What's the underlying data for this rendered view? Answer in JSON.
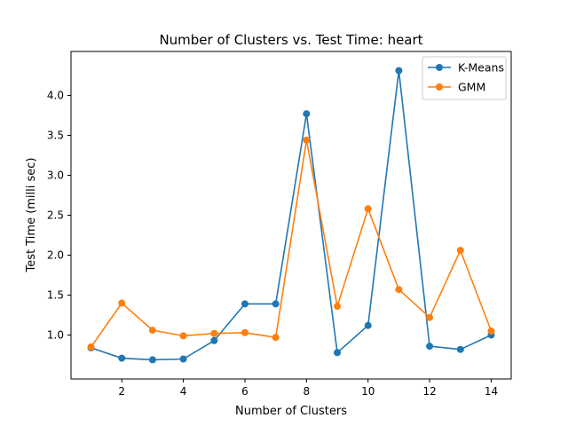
{
  "chart_data": {
    "type": "line",
    "title": "Number of Clusters vs. Test Time: heart",
    "xlabel": "Number of Clusters",
    "ylabel": "Test Time (milli sec)",
    "x": [
      1,
      2,
      3,
      4,
      5,
      6,
      7,
      8,
      9,
      10,
      11,
      12,
      13,
      14
    ],
    "xlim": [
      0.35,
      14.65
    ],
    "ylim": [
      0.45,
      4.55
    ],
    "xticks": [
      2,
      4,
      6,
      8,
      10,
      12,
      14
    ],
    "yticks": [
      1.0,
      1.5,
      2.0,
      2.5,
      3.0,
      3.5,
      4.0
    ],
    "yticks_labels": [
      "1.0",
      "1.5",
      "2.0",
      "2.5",
      "3.0",
      "3.5",
      "4.0"
    ],
    "grid": false,
    "legend_position": "top-right",
    "series": [
      {
        "name": "K-Means",
        "color": "#1f77b4",
        "values": [
          0.84,
          0.71,
          0.69,
          0.7,
          0.93,
          1.39,
          1.39,
          3.77,
          0.78,
          1.12,
          4.31,
          0.86,
          0.82,
          1.0
        ]
      },
      {
        "name": "GMM",
        "color": "#ff7f0e",
        "values": [
          0.85,
          1.4,
          1.06,
          0.99,
          1.02,
          1.03,
          0.97,
          3.44,
          1.36,
          2.58,
          1.57,
          1.22,
          2.06,
          1.05
        ]
      }
    ]
  }
}
